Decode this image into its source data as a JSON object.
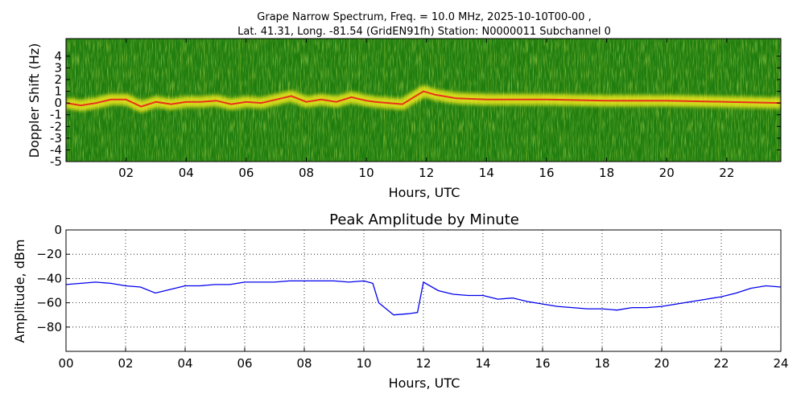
{
  "chart_data": [
    {
      "type": "heatmap",
      "title_line1": "Grape Narrow Spectrum, Freq. = 10.0 MHz, 2025-10-10T00-00 ,",
      "title_line2": "Lat.  41.31, Long. -81.54 (GridEN91fh) Station: N0000011 Subchannel 0",
      "xlabel": "Hours, UTC",
      "ylabel": "Doppler Shift (Hz)",
      "xlim": [
        0,
        23.8
      ],
      "ylim": [
        -5,
        5
      ],
      "x_ticks": [
        2,
        4,
        6,
        8,
        10,
        12,
        14,
        16,
        18,
        20,
        22
      ],
      "x_tick_labels": [
        "02",
        "04",
        "06",
        "08",
        "10",
        "12",
        "14",
        "16",
        "18",
        "20",
        "22"
      ],
      "y_ticks": [
        4,
        3,
        2,
        1,
        0,
        -1,
        -2,
        -3,
        -4,
        -5
      ],
      "y_tick_labels": [
        "4",
        "3",
        "2",
        "1",
        "0",
        "-1",
        "-2",
        "-3",
        "-4",
        "-5"
      ],
      "colors": {
        "background": "#1f7d0f",
        "mid": "#8cc21a",
        "high": "#f0e81e",
        "peak": "#e8321a"
      },
      "doppler_trace": {
        "x": [
          0,
          0.5,
          1,
          1.5,
          2,
          2.5,
          3,
          3.5,
          4,
          4.5,
          5,
          5.5,
          6,
          6.5,
          7,
          7.5,
          8,
          8.5,
          9,
          9.5,
          10,
          10.3,
          11.2,
          11.9,
          12.3,
          13,
          14,
          16,
          18,
          20,
          22,
          23.8
        ],
        "y": [
          0,
          -0.2,
          0,
          0.3,
          0.3,
          -0.3,
          0.1,
          -0.1,
          0.1,
          0.1,
          0.2,
          -0.1,
          0.1,
          0.0,
          0.3,
          0.6,
          0.1,
          0.3,
          0.1,
          0.5,
          0.2,
          0.1,
          -0.1,
          1.0,
          0.7,
          0.4,
          0.3,
          0.3,
          0.2,
          0.2,
          0.1,
          0.0
        ]
      }
    },
    {
      "type": "line",
      "title": "Peak Amplitude by Minute",
      "xlabel": "Hours, UTC",
      "ylabel": "Amplitude, dBm",
      "xlim": [
        0,
        24
      ],
      "ylim": [
        -100,
        0
      ],
      "grid": true,
      "x_ticks": [
        0,
        2,
        4,
        6,
        8,
        10,
        12,
        14,
        16,
        18,
        20,
        22,
        24
      ],
      "x_tick_labels": [
        "00",
        "02",
        "04",
        "06",
        "08",
        "10",
        "12",
        "14",
        "16",
        "18",
        "20",
        "22",
        "24"
      ],
      "y_ticks": [
        0,
        -20,
        -40,
        -60,
        -80
      ],
      "y_tick_labels": [
        "0",
        "−20",
        "−40",
        "−60",
        "−80"
      ],
      "line_color": "#0000ee",
      "series": [
        {
          "x": [
            0,
            0.5,
            1,
            1.5,
            2,
            2.5,
            3,
            3.5,
            4,
            4.5,
            5,
            5.5,
            6,
            6.5,
            7,
            7.5,
            8,
            8.5,
            9,
            9.5,
            10,
            10.3,
            10.5,
            11,
            11.5,
            11.8,
            12,
            12.5,
            13,
            13.5,
            14,
            14.5,
            15,
            15.5,
            16,
            16.5,
            17,
            17.5,
            18,
            18.5,
            19,
            19.5,
            20,
            20.5,
            21,
            21.5,
            22,
            22.5,
            23,
            23.5,
            24
          ],
          "y": [
            -45,
            -44,
            -43,
            -44,
            -46,
            -47,
            -52,
            -49,
            -46,
            -46,
            -45,
            -45,
            -43,
            -43,
            -43,
            -42,
            -42,
            -42,
            -42,
            -43,
            -42,
            -44,
            -60,
            -70,
            -69,
            -68,
            -43,
            -50,
            -53,
            -54,
            -54,
            -57,
            -56,
            -59,
            -61,
            -63,
            -64,
            -65,
            -65,
            -66,
            -64,
            -64,
            -63,
            -61,
            -59,
            -57,
            -55,
            -52,
            -48,
            -46,
            -47
          ]
        }
      ]
    }
  ]
}
